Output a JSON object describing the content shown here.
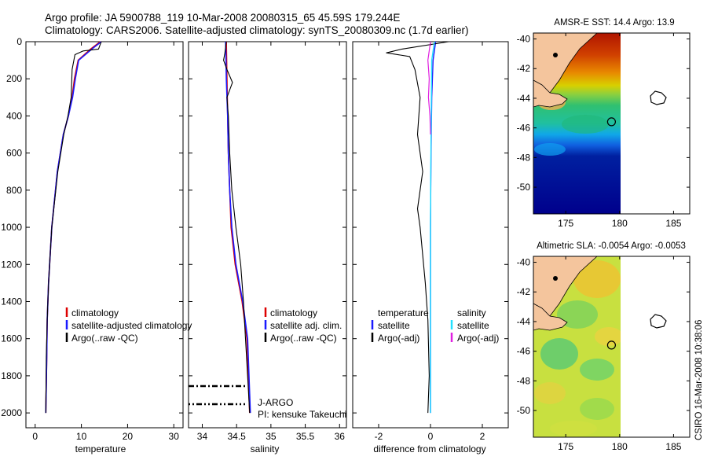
{
  "header": {
    "title_line1": "Argo profile: JA 5900788_119 10-Mar-2008 20080315_65 45.59S 179.244E",
    "title_line2": "Climatology: CARS2006. Satellite-adjusted climatology: synTS_20080309.nc (1.7d earlier)"
  },
  "colors": {
    "climatology": "#dd0000",
    "satellite": "#1a1aff",
    "argo": "#000000",
    "satellite_sal_diff": "#22e0ff",
    "argo_sal_diff": "#e020e0",
    "land": "#f4c59d"
  },
  "chart_data": [
    {
      "type": "line",
      "name": "temperature-profile",
      "xlabel": "temperature",
      "ylabel": "",
      "xlim": [
        -2,
        32
      ],
      "ylim": [
        2080,
        0
      ],
      "xticks": [
        0,
        10,
        20,
        30
      ],
      "xtick_labels": [
        "0",
        "10",
        "20",
        "30"
      ],
      "yticks": [
        0,
        200,
        400,
        600,
        800,
        1000,
        1200,
        1400,
        1600,
        1800,
        2000
      ],
      "ytick_labels": [
        "0",
        "200",
        "400",
        "600",
        "800",
        "1000",
        "1200",
        "1400",
        "1600",
        "1800",
        "2000"
      ],
      "series": [
        {
          "name": "climatology",
          "color": "#dd0000",
          "width": 1.6,
          "x": [
            14.1,
            12.0,
            9.3,
            8.5,
            8.0,
            7.2,
            6.1,
            4.8,
            3.6,
            2.9,
            2.6,
            2.5,
            2.3
          ],
          "y": [
            0,
            40,
            100,
            200,
            300,
            400,
            500,
            700,
            1000,
            1300,
            1500,
            1700,
            2000
          ]
        },
        {
          "name": "satellite-adjusted climatology",
          "color": "#1a1aff",
          "width": 1.6,
          "x": [
            14.3,
            12.5,
            9.4,
            8.7,
            8.1,
            7.2,
            6.1,
            4.8,
            3.6,
            2.9,
            2.6,
            2.5,
            2.3
          ],
          "y": [
            0,
            35,
            100,
            200,
            300,
            400,
            500,
            700,
            1000,
            1300,
            1500,
            1700,
            2000
          ]
        },
        {
          "name": "Argo(..raw -QC)",
          "color": "#000000",
          "width": 1.1,
          "x": [
            14.3,
            13.7,
            10.4,
            8.6,
            8.0,
            7.8,
            7.1,
            6.2,
            4.9,
            3.6,
            2.9,
            2.6,
            2.4,
            2.3
          ],
          "y": [
            0,
            40,
            50,
            70,
            150,
            300,
            400,
            500,
            700,
            1000,
            1300,
            1500,
            1700,
            2000
          ]
        }
      ],
      "legend": {
        "position": "lower-right",
        "entries": [
          "climatology",
          "satellite-adjusted climatology",
          "Argo(..raw -QC)"
        ]
      }
    },
    {
      "type": "line",
      "name": "salinity-profile",
      "xlabel": "salinity",
      "xlim": [
        33.8,
        36.1
      ],
      "ylim": [
        2080,
        0
      ],
      "xticks": [
        34,
        34.5,
        35,
        35.5,
        36
      ],
      "xtick_labels": [
        "34",
        "34.5",
        "35",
        "35.5",
        "36"
      ],
      "series": [
        {
          "name": "climatology",
          "color": "#dd0000",
          "width": 1.6,
          "x": [
            34.35,
            34.36,
            34.37,
            34.38,
            34.4,
            34.42,
            34.48,
            34.58,
            34.65,
            34.69
          ],
          "y": [
            0,
            200,
            400,
            600,
            800,
            1000,
            1200,
            1400,
            1600,
            2000
          ]
        },
        {
          "name": "satellite adj. clim.",
          "color": "#1a1aff",
          "width": 1.6,
          "x": [
            34.34,
            34.35,
            34.37,
            34.38,
            34.4,
            34.43,
            34.49,
            34.59,
            34.66,
            34.7
          ],
          "y": [
            0,
            200,
            400,
            600,
            800,
            1000,
            1200,
            1400,
            1600,
            2000
          ]
        },
        {
          "name": "Argo(..raw -QC)",
          "color": "#000000",
          "width": 1.1,
          "x": [
            34.35,
            34.33,
            34.31,
            34.36,
            34.44,
            34.36,
            34.38,
            34.4,
            34.43,
            34.49,
            34.56,
            34.6,
            34.63,
            34.66,
            34.69
          ],
          "y": [
            0,
            60,
            100,
            150,
            220,
            300,
            400,
            600,
            800,
            1000,
            1200,
            1400,
            1600,
            1800,
            2000
          ]
        }
      ],
      "annotations": [
        "J-ARGO",
        "PI: kensuke Takeuchi"
      ],
      "legend": {
        "position": "lower-right",
        "entries": [
          "climatology",
          "satellite adj. clim.",
          "Argo(..raw -QC)"
        ]
      }
    },
    {
      "type": "line",
      "name": "difference-profile",
      "xlabel": "difference from climatology",
      "xlim": [
        -3,
        3
      ],
      "ylim": [
        2080,
        0
      ],
      "xticks": [
        -2,
        0,
        2
      ],
      "xtick_labels": [
        "-2",
        "0",
        "2"
      ],
      "series": [
        {
          "name": "temperature satellite",
          "color": "#1a1aff",
          "width": 1.4,
          "x": [
            0.2,
            0.1,
            0.05,
            0.02,
            0.0,
            0.0,
            0.0,
            0.0
          ],
          "y": [
            0,
            100,
            300,
            600,
            1000,
            1400,
            1800,
            2000
          ]
        },
        {
          "name": "temperature Argo(-adj)",
          "color": "#000000",
          "width": 1.1,
          "x": [
            0.7,
            -1.1,
            -1.7,
            -0.8,
            -0.6,
            -0.4,
            -0.5,
            -0.3,
            -0.5,
            -0.4,
            -0.2,
            -0.1,
            -0.05,
            -0.1
          ],
          "y": [
            0,
            40,
            60,
            80,
            150,
            300,
            500,
            700,
            900,
            1000,
            1300,
            1500,
            1800,
            2000
          ]
        },
        {
          "name": "salinity satellite",
          "color": "#22e0ff",
          "width": 1.4,
          "x": [
            0.15,
            0.05,
            0.02,
            0.0,
            0.0
          ],
          "y": [
            0,
            100,
            500,
            1000,
            2000
          ]
        },
        {
          "name": "salinity Argo(-adj)",
          "color": "#e020e0",
          "width": 1.2,
          "x": [
            0.0,
            -0.1,
            -0.05,
            -0.08,
            -0.02,
            0.0
          ],
          "y": [
            0,
            100,
            200,
            300,
            400,
            500
          ]
        }
      ],
      "legend": {
        "position": "lower-center",
        "headers": [
          "temperature",
          "salinity"
        ],
        "entries": [
          "satellite",
          "Argo(-adj)",
          "satellite",
          "Argo(-adj)"
        ]
      }
    },
    {
      "type": "heatmap",
      "name": "sst-map",
      "title": "AMSR-E SST: 14.4  Argo: 13.9",
      "xlim": [
        172,
        186.5
      ],
      "ylim": [
        -51.8,
        -39.6
      ],
      "xticks": [
        175,
        180,
        185
      ],
      "xtick_labels": [
        "175",
        "180",
        "185"
      ],
      "yticks": [
        -40,
        -42,
        -44,
        -46,
        -48,
        -50
      ],
      "ytick_labels": [
        "-40",
        "-42",
        "-44",
        "-46",
        "-48",
        "-50"
      ],
      "data_extent_lon": [
        172,
        180
      ],
      "marker": {
        "lon": 179.244,
        "lat": -45.59
      }
    },
    {
      "type": "heatmap",
      "name": "sla-map",
      "title": "Altimetric SLA: -0.0054  Argo: -0.0053",
      "xlim": [
        172,
        186.5
      ],
      "ylim": [
        -51.8,
        -39.6
      ],
      "xticks": [
        175,
        180,
        185
      ],
      "xtick_labels": [
        "175",
        "180",
        "185"
      ],
      "yticks": [
        -40,
        -42,
        -44,
        -46,
        -48,
        -50
      ],
      "ytick_labels": [
        "-40",
        "-42",
        "-44",
        "-46",
        "-48",
        "-50"
      ],
      "data_extent_lon": [
        172,
        180
      ],
      "marker": {
        "lon": 179.244,
        "lat": -45.59
      }
    }
  ],
  "footer": {
    "stamp": "CSIRO 16-Mar-2008 10:38:06"
  }
}
